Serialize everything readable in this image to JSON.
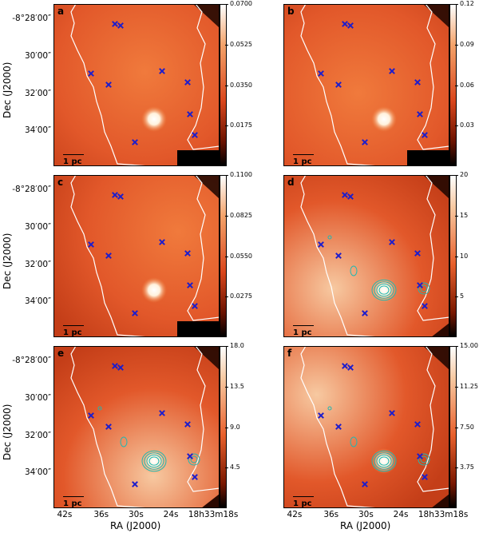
{
  "colors": {
    "marker": "#1d1dcc",
    "boundary": "#ffffff",
    "contour": "#1fb8b2"
  },
  "panels": [
    {
      "label": "a",
      "scale": "1 pc",
      "ticks": [
        "0.0700",
        "0.0525",
        "0.0350",
        "0.0175"
      ],
      "contours": false
    },
    {
      "label": "b",
      "scale": "1 pc",
      "ticks": [
        "0.12",
        "0.09",
        "0.06",
        "0.03"
      ],
      "contours": false
    },
    {
      "label": "c",
      "scale": "1 pc",
      "ticks": [
        "0.1100",
        "0.0825",
        "0.0550",
        "0.0275"
      ],
      "contours": false
    },
    {
      "label": "d",
      "scale": "1 pc",
      "ticks": [
        "20",
        "15",
        "10",
        "5"
      ],
      "contours": true
    },
    {
      "label": "e",
      "scale": "1 pc",
      "ticks": [
        "18.0",
        "13.5",
        "9.0",
        "4.5"
      ],
      "contours": true
    },
    {
      "label": "f",
      "scale": "1 pc",
      "ticks": [
        "15.00",
        "11.25",
        "7.50",
        "3.75"
      ],
      "contours": true
    }
  ],
  "axes": {
    "ylabel": "Dec (J2000)",
    "xlabel": "RA (J2000)",
    "dec_ticks": [
      "-8°28′00″",
      "30′00″",
      "32′00″",
      "34′00″"
    ],
    "ra_ticks": [
      "42s",
      "36s",
      "30s",
      "24s",
      "18h33m18s"
    ]
  }
}
